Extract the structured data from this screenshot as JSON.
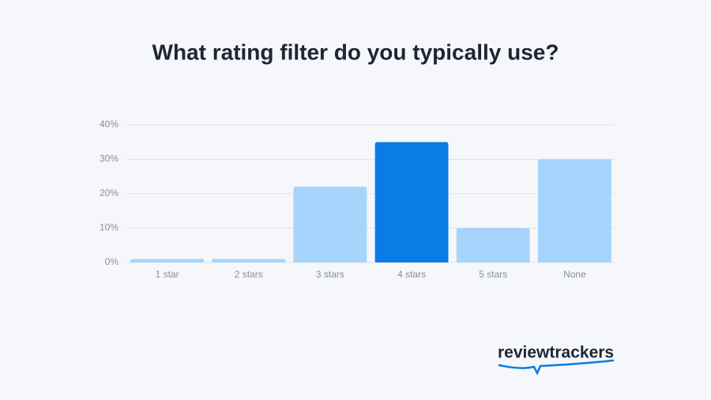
{
  "chart_data": {
    "type": "bar",
    "title": "What rating filter do you typically use?",
    "categories": [
      "1 star",
      "2 stars",
      "3 stars",
      "4 stars",
      "5 stars",
      "None"
    ],
    "values": [
      1,
      1,
      22,
      35,
      10,
      30
    ],
    "colors": [
      "#a6d4fc",
      "#a6d4fc",
      "#a6d4fc",
      "#0b7be6",
      "#a6d4fc",
      "#a6d4fc"
    ],
    "ylim": [
      0,
      40
    ],
    "yticks": [
      {
        "value": 0,
        "label": "0%"
      },
      {
        "value": 10,
        "label": "10%"
      },
      {
        "value": 20,
        "label": "20%"
      },
      {
        "value": 30,
        "label": "30%"
      },
      {
        "value": 40,
        "label": "40%"
      }
    ],
    "grid": true
  },
  "brand": "reviewtrackers"
}
